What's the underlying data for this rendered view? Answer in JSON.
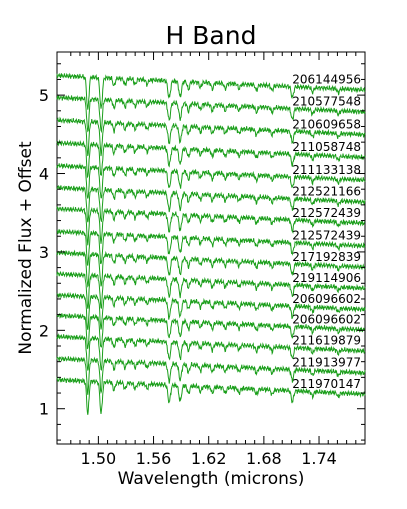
{
  "chart_data": {
    "type": "line",
    "title": "H Band",
    "xlabel": "Wavelength (microns)",
    "ylabel": "Normalized Flux + Offset",
    "xlim": [
      1.455,
      1.79
    ],
    "ylim": [
      0.55,
      5.55
    ],
    "x_ticks": [
      1.5,
      1.56,
      1.62,
      1.68,
      1.74
    ],
    "x_tick_labels": [
      "1.50",
      "1.56",
      "1.62",
      "1.68",
      "1.74"
    ],
    "y_ticks": [
      1,
      2,
      3,
      4,
      5
    ],
    "y_tick_labels": [
      "1",
      "2",
      "3",
      "4",
      "5"
    ],
    "line_color": "#1a9e1a",
    "grid": false,
    "series": [
      {
        "name": "206144956",
        "offset": 5.25
      },
      {
        "name": "210577548",
        "offset": 4.97
      },
      {
        "name": "210609658",
        "offset": 4.68
      },
      {
        "name": "211058748",
        "offset": 4.39
      },
      {
        "name": "211133138",
        "offset": 4.1
      },
      {
        "name": "212521166",
        "offset": 3.82
      },
      {
        "name": "212572439",
        "offset": 3.55
      },
      {
        "name": "212572439",
        "offset": 3.26
      },
      {
        "name": "217192839",
        "offset": 2.99
      },
      {
        "name": "219114906",
        "offset": 2.72
      },
      {
        "name": "206096602",
        "offset": 2.45
      },
      {
        "name": "206096602",
        "offset": 2.19
      },
      {
        "name": "211619879",
        "offset": 1.92
      },
      {
        "name": "211913977",
        "offset": 1.64
      },
      {
        "name": "211970147",
        "offset": 1.37
      }
    ]
  }
}
